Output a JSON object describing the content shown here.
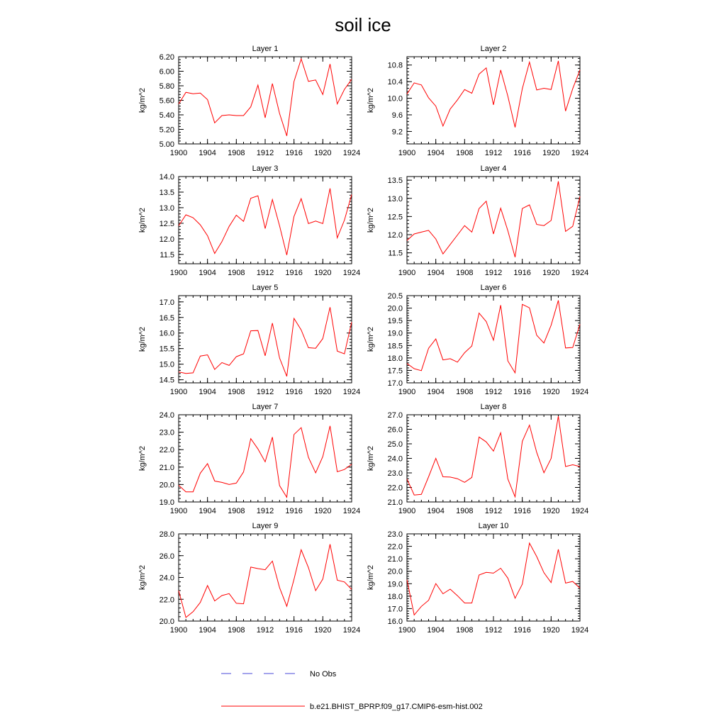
{
  "title": "soil ice",
  "ylabel": "kg/m^2",
  "legend": {
    "placement": "bottom-center",
    "entries": [
      {
        "label": "No Obs",
        "color": "#4a4ad8",
        "style": "dashed"
      },
      {
        "label": "b.e21.BHIST_BPRP.f09_g17.CMIP6-esm-hist.002",
        "color": "#ff0000",
        "style": "solid"
      }
    ]
  },
  "series_color": "#ff0000",
  "chart_data": [
    {
      "type": "line",
      "title": "Layer 1",
      "ylabel": "kg/m^2",
      "xlim": [
        1900,
        1924
      ],
      "ylim": [
        5.0,
        6.2
      ],
      "xticks": [
        1900,
        1904,
        1908,
        1912,
        1916,
        1920,
        1924
      ],
      "yticks": [
        "5.00",
        "5.20",
        "5.40",
        "5.60",
        "5.80",
        "6.00",
        "6.20"
      ],
      "series": [
        {
          "name": "b.e21.BHIST_BPRP.f09_g17.CMIP6-esm-hist.002",
          "x": [
            1900,
            1901,
            1902,
            1903,
            1904,
            1905,
            1906,
            1907,
            1908,
            1909,
            1910,
            1911,
            1912,
            1913,
            1914,
            1915,
            1916,
            1917,
            1918,
            1919,
            1920,
            1921,
            1922,
            1923,
            1924
          ],
          "values": [
            5.55,
            5.71,
            5.69,
            5.7,
            5.61,
            5.29,
            5.39,
            5.4,
            5.39,
            5.39,
            5.51,
            5.81,
            5.36,
            5.83,
            5.42,
            5.11,
            5.86,
            6.17,
            5.86,
            5.88,
            5.68,
            6.1,
            5.55,
            5.75,
            5.89
          ]
        }
      ]
    },
    {
      "type": "line",
      "title": "Layer 2",
      "ylabel": "kg/m^2",
      "xlim": [
        1900,
        1924
      ],
      "ylim": [
        8.9,
        11.0
      ],
      "xticks": [
        1900,
        1904,
        1908,
        1912,
        1916,
        1920,
        1924
      ],
      "yticks": [
        "9.2",
        "9.6",
        "10.0",
        "10.4",
        "10.8"
      ],
      "series": [
        {
          "name": "b.e21.BHIST_BPRP.f09_g17.CMIP6-esm-hist.002",
          "x": [
            1900,
            1901,
            1902,
            1903,
            1904,
            1905,
            1906,
            1907,
            1908,
            1909,
            1910,
            1911,
            1912,
            1913,
            1914,
            1915,
            1916,
            1917,
            1918,
            1919,
            1920,
            1921,
            1922,
            1923,
            1924
          ],
          "values": [
            10.1,
            10.37,
            10.32,
            10.01,
            9.81,
            9.33,
            9.74,
            9.96,
            10.21,
            10.12,
            10.58,
            10.73,
            9.84,
            10.68,
            10.05,
            9.3,
            10.23,
            10.87,
            10.2,
            10.24,
            10.21,
            10.9,
            9.69,
            10.23,
            10.68
          ]
        }
      ]
    },
    {
      "type": "line",
      "title": "Layer 3",
      "ylabel": "kg/m^2",
      "xlim": [
        1900,
        1924
      ],
      "ylim": [
        11.2,
        14.0
      ],
      "xticks": [
        1900,
        1904,
        1908,
        1912,
        1916,
        1920,
        1924
      ],
      "yticks": [
        "11.5",
        "12.0",
        "12.5",
        "13.0",
        "13.5",
        "14.0"
      ],
      "series": [
        {
          "name": "b.e21.BHIST_BPRP.f09_g17.CMIP6-esm-hist.002",
          "x": [
            1900,
            1901,
            1902,
            1903,
            1904,
            1905,
            1906,
            1907,
            1908,
            1909,
            1910,
            1911,
            1912,
            1913,
            1914,
            1915,
            1916,
            1917,
            1918,
            1919,
            1920,
            1921,
            1922,
            1923,
            1924
          ],
          "values": [
            12.42,
            12.77,
            12.68,
            12.45,
            12.1,
            11.53,
            11.91,
            12.4,
            12.76,
            12.56,
            13.3,
            13.38,
            12.33,
            13.26,
            12.42,
            11.48,
            12.72,
            13.29,
            12.49,
            12.57,
            12.49,
            13.62,
            12.03,
            12.6,
            13.42
          ]
        }
      ]
    },
    {
      "type": "line",
      "title": "Layer 4",
      "ylabel": "kg/m^2",
      "xlim": [
        1900,
        1924
      ],
      "ylim": [
        11.2,
        13.6
      ],
      "xticks": [
        1900,
        1904,
        1908,
        1912,
        1916,
        1920,
        1924
      ],
      "yticks": [
        "11.5",
        "12.0",
        "12.5",
        "13.0",
        "13.5"
      ],
      "series": [
        {
          "name": "b.e21.BHIST_BPRP.f09_g17.CMIP6-esm-hist.002",
          "x": [
            1900,
            1901,
            1902,
            1903,
            1904,
            1905,
            1906,
            1907,
            1908,
            1909,
            1910,
            1911,
            1912,
            1913,
            1914,
            1915,
            1916,
            1917,
            1918,
            1919,
            1920,
            1921,
            1922,
            1923,
            1924
          ],
          "values": [
            11.84,
            12.02,
            12.07,
            12.12,
            11.88,
            11.47,
            11.73,
            11.99,
            12.25,
            12.07,
            12.72,
            12.92,
            12.02,
            12.73,
            12.11,
            11.38,
            12.72,
            12.82,
            12.28,
            12.25,
            12.39,
            13.47,
            12.09,
            12.23,
            13.05
          ]
        }
      ]
    },
    {
      "type": "line",
      "title": "Layer 5",
      "ylabel": "kg/m^2",
      "xlim": [
        1900,
        1924
      ],
      "ylim": [
        14.4,
        17.2
      ],
      "xticks": [
        1900,
        1904,
        1908,
        1912,
        1916,
        1920,
        1924
      ],
      "yticks": [
        "14.5",
        "15.0",
        "15.5",
        "16.0",
        "16.5",
        "17.0"
      ],
      "series": [
        {
          "name": "b.e21.BHIST_BPRP.f09_g17.CMIP6-esm-hist.002",
          "x": [
            1900,
            1901,
            1902,
            1903,
            1904,
            1905,
            1906,
            1907,
            1908,
            1909,
            1910,
            1911,
            1912,
            1913,
            1914,
            1915,
            1916,
            1917,
            1918,
            1919,
            1920,
            1921,
            1922,
            1923,
            1924
          ],
          "values": [
            14.75,
            14.7,
            14.72,
            15.26,
            15.3,
            14.83,
            15.05,
            14.96,
            15.24,
            15.33,
            16.07,
            16.08,
            15.27,
            16.32,
            15.2,
            14.61,
            16.47,
            16.1,
            15.53,
            15.51,
            15.82,
            16.83,
            15.42,
            15.33,
            16.35
          ]
        }
      ]
    },
    {
      "type": "line",
      "title": "Layer 6",
      "ylabel": "kg/m^2",
      "xlim": [
        1900,
        1924
      ],
      "ylim": [
        17.0,
        20.5
      ],
      "xticks": [
        1900,
        1904,
        1908,
        1912,
        1916,
        1920,
        1924
      ],
      "yticks": [
        "17.0",
        "17.5",
        "18.0",
        "18.5",
        "19.0",
        "19.5",
        "20.0",
        "20.5"
      ],
      "series": [
        {
          "name": "b.e21.BHIST_BPRP.f09_g17.CMIP6-esm-hist.002",
          "x": [
            1900,
            1901,
            1902,
            1903,
            1904,
            1905,
            1906,
            1907,
            1908,
            1909,
            1910,
            1911,
            1912,
            1913,
            1914,
            1915,
            1916,
            1917,
            1918,
            1919,
            1920,
            1921,
            1922,
            1923,
            1924
          ],
          "values": [
            17.78,
            17.57,
            17.49,
            18.39,
            18.76,
            17.92,
            17.97,
            17.83,
            18.21,
            18.48,
            19.8,
            19.46,
            18.71,
            20.12,
            17.88,
            17.4,
            20.15,
            20.01,
            18.91,
            18.6,
            19.31,
            20.31,
            18.4,
            18.42,
            19.35
          ]
        }
      ]
    },
    {
      "type": "line",
      "title": "Layer 7",
      "ylabel": "kg/m^2",
      "xlim": [
        1900,
        1924
      ],
      "ylim": [
        19.0,
        24.0
      ],
      "xticks": [
        1900,
        1904,
        1908,
        1912,
        1916,
        1920,
        1924
      ],
      "yticks": [
        "19.0",
        "20.0",
        "21.0",
        "22.0",
        "23.0",
        "24.0"
      ],
      "series": [
        {
          "name": "b.e21.BHIST_BPRP.f09_g17.CMIP6-esm-hist.002",
          "x": [
            1900,
            1901,
            1902,
            1903,
            1904,
            1905,
            1906,
            1907,
            1908,
            1909,
            1910,
            1911,
            1912,
            1913,
            1914,
            1915,
            1916,
            1917,
            1918,
            1919,
            1920,
            1921,
            1922,
            1923,
            1924
          ],
          "values": [
            19.96,
            19.58,
            19.58,
            20.65,
            21.2,
            20.2,
            20.12,
            20.0,
            20.08,
            20.72,
            22.63,
            22.04,
            21.3,
            22.72,
            19.94,
            19.27,
            22.87,
            23.26,
            21.56,
            20.67,
            21.6,
            23.36,
            20.73,
            20.86,
            21.16
          ]
        }
      ]
    },
    {
      "type": "line",
      "title": "Layer 8",
      "ylabel": "kg/m^2",
      "xlim": [
        1900,
        1924
      ],
      "ylim": [
        21.0,
        27.0
      ],
      "xticks": [
        1900,
        1904,
        1908,
        1912,
        1916,
        1920,
        1924
      ],
      "yticks": [
        "21.0",
        "22.0",
        "23.0",
        "24.0",
        "25.0",
        "26.0",
        "27.0"
      ],
      "series": [
        {
          "name": "b.e21.BHIST_BPRP.f09_g17.CMIP6-esm-hist.002",
          "x": [
            1900,
            1901,
            1902,
            1903,
            1904,
            1905,
            1906,
            1907,
            1908,
            1909,
            1910,
            1911,
            1912,
            1913,
            1914,
            1915,
            1916,
            1917,
            1918,
            1919,
            1920,
            1921,
            1922,
            1923,
            1924
          ],
          "values": [
            22.58,
            21.48,
            21.52,
            22.73,
            24.0,
            22.73,
            22.71,
            22.6,
            22.35,
            22.69,
            25.47,
            25.13,
            24.5,
            25.76,
            22.58,
            21.35,
            25.17,
            26.29,
            24.41,
            23.01,
            23.99,
            26.9,
            23.44,
            23.56,
            23.44
          ]
        }
      ]
    },
    {
      "type": "line",
      "title": "Layer 9",
      "ylabel": "kg/m^2",
      "xlim": [
        1900,
        1924
      ],
      "ylim": [
        20.0,
        28.0
      ],
      "xticks": [
        1900,
        1904,
        1908,
        1912,
        1916,
        1920,
        1924
      ],
      "yticks": [
        "20.0",
        "22.0",
        "24.0",
        "26.0",
        "28.0"
      ],
      "series": [
        {
          "name": "b.e21.BHIST_BPRP.f09_g17.CMIP6-esm-hist.002",
          "x": [
            1900,
            1901,
            1902,
            1903,
            1904,
            1905,
            1906,
            1907,
            1908,
            1909,
            1910,
            1911,
            1912,
            1913,
            1914,
            1915,
            1916,
            1917,
            1918,
            1919,
            1920,
            1921,
            1922,
            1923,
            1924
          ],
          "values": [
            22.79,
            20.33,
            20.86,
            21.71,
            23.26,
            21.85,
            22.34,
            22.52,
            21.63,
            21.59,
            24.95,
            24.81,
            24.71,
            25.5,
            23.07,
            21.36,
            23.84,
            26.54,
            24.91,
            22.79,
            23.85,
            27.05,
            23.75,
            23.59,
            22.9
          ]
        }
      ]
    },
    {
      "type": "line",
      "title": "Layer 10",
      "ylabel": "kg/m^2",
      "xlim": [
        1900,
        1924
      ],
      "ylim": [
        16.0,
        23.0
      ],
      "xticks": [
        1900,
        1904,
        1908,
        1912,
        1916,
        1920,
        1924
      ],
      "yticks": [
        "16.0",
        "17.0",
        "18.0",
        "19.0",
        "20.0",
        "21.0",
        "22.0",
        "23.0"
      ],
      "series": [
        {
          "name": "b.e21.BHIST_BPRP.f09_g17.CMIP6-esm-hist.002",
          "x": [
            1900,
            1901,
            1902,
            1903,
            1904,
            1905,
            1906,
            1907,
            1908,
            1909,
            1910,
            1911,
            1912,
            1913,
            1914,
            1915,
            1916,
            1917,
            1918,
            1919,
            1920,
            1921,
            1922,
            1923,
            1924
          ],
          "values": [
            19.32,
            16.49,
            17.18,
            17.67,
            19.01,
            18.19,
            18.56,
            18.04,
            17.45,
            17.45,
            19.7,
            19.91,
            19.85,
            20.24,
            19.45,
            17.83,
            18.96,
            22.26,
            21.18,
            19.88,
            19.09,
            21.76,
            19.05,
            19.18,
            18.64
          ]
        }
      ]
    }
  ]
}
